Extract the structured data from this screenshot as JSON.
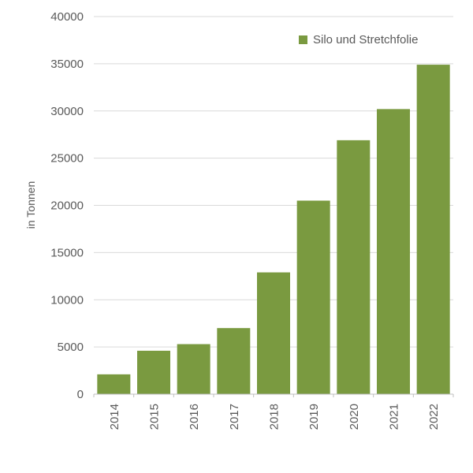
{
  "colors": {
    "bar": "#7A9A40",
    "grid": "#D9D9D9",
    "axis": "#BFBFBF",
    "text": "#595959",
    "background": "#FFFFFF"
  },
  "legend": {
    "label": "Silo und Stretchfolie"
  },
  "y_axis": {
    "title": "in Tonnen",
    "tick_labels": [
      "0",
      "5000",
      "10000",
      "15000",
      "20000",
      "25000",
      "30000",
      "35000",
      "40000"
    ]
  },
  "chart_data": {
    "type": "bar",
    "title": "",
    "categories": [
      "2014",
      "2015",
      "2016",
      "2017",
      "2018",
      "2019",
      "2020",
      "2021",
      "2022"
    ],
    "series": [
      {
        "name": "Silo und Stretchfolie",
        "values": [
          2100,
          4600,
          5300,
          7000,
          12900,
          20500,
          26900,
          30200,
          34900
        ]
      }
    ],
    "xlabel": "",
    "ylabel": "in Tonnen",
    "ylim": [
      0,
      40000
    ],
    "ytick_step": 5000,
    "grid": true,
    "legend_position": "top-right",
    "bar_color": "#7A9A40",
    "x_label_rotation_deg": -90
  }
}
